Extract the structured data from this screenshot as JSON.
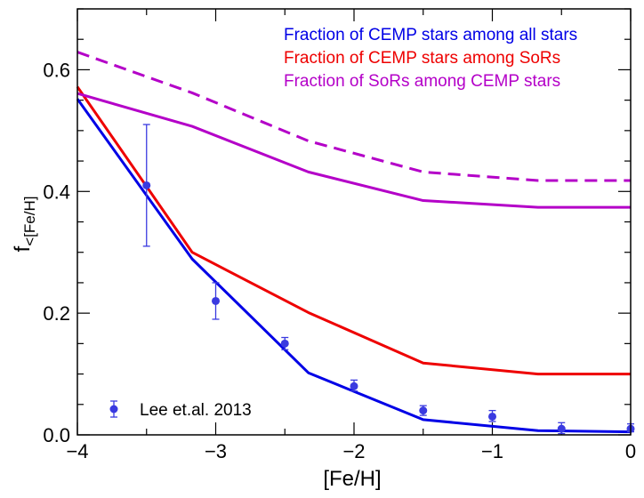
{
  "chart_data": {
    "type": "line",
    "title": "",
    "xlabel": "[Fe/H]",
    "ylabel_main": "f",
    "ylabel_sub": "<[Fe/H]",
    "xlim": [
      -4,
      0
    ],
    "ylim": [
      0,
      0.7
    ],
    "x_major_ticks": [
      -4,
      -3,
      -2,
      -1,
      0
    ],
    "x_tick_labels": [
      "−4",
      "−3",
      "−2",
      "−1",
      "0"
    ],
    "x_minor_step": 0.5,
    "y_major_ticks": [
      0,
      0.2,
      0.4,
      0.6
    ],
    "y_tick_labels": [
      "0.0",
      "0.2",
      "0.4",
      "0.6"
    ],
    "y_minor_step": 0.05,
    "grid": false,
    "legend_position": "top-right",
    "series": [
      {
        "name": "Fraction of CEMP stars among all stars",
        "color": "#0000e6",
        "dash": "solid",
        "x": [
          -4,
          -3.17,
          -2.33,
          -1.5,
          -0.67,
          0
        ],
        "y": [
          0.552,
          0.289,
          0.102,
          0.025,
          0.007,
          0.005
        ]
      },
      {
        "name": "Fraction of CEMP stars among SoRs",
        "color": "#ee0000",
        "dash": "solid",
        "x": [
          -4,
          -3.17,
          -2.33,
          -1.5,
          -0.67,
          0
        ],
        "y": [
          0.572,
          0.3,
          0.201,
          0.118,
          0.1,
          0.1
        ]
      },
      {
        "name": "Fraction of SoRs among CEMP stars",
        "color": "#b400c8",
        "dash": "solid",
        "x": [
          -4,
          -3.17,
          -2.33,
          -1.5,
          -0.67,
          0
        ],
        "y": [
          0.561,
          0.507,
          0.432,
          0.385,
          0.374,
          0.374
        ]
      },
      {
        "name": "",
        "color": "#b400c8",
        "dash": "dashed",
        "x": [
          -4,
          -3.17,
          -2.33,
          -1.5,
          -0.67,
          0
        ],
        "y": [
          0.629,
          0.562,
          0.483,
          0.432,
          0.418,
          0.418
        ]
      }
    ],
    "legend_entries": [
      {
        "label": "Fraction of CEMP stars among all stars",
        "color": "#0000e6"
      },
      {
        "label": "Fraction of CEMP stars among SoRs",
        "color": "#ee0000"
      },
      {
        "label": "Fraction of SoRs among CEMP stars",
        "color": "#b400c8"
      }
    ],
    "observations": {
      "name": "Lee et.al. 2013",
      "color": "#3a3ae0",
      "points": [
        {
          "x": -3.5,
          "y": 0.41,
          "err_low": 0.1,
          "err_high": 0.1
        },
        {
          "x": -3.0,
          "y": 0.22,
          "err_low": 0.03,
          "err_high": 0.03
        },
        {
          "x": -2.5,
          "y": 0.15,
          "err_low": 0.01,
          "err_high": 0.01
        },
        {
          "x": -2.0,
          "y": 0.08,
          "err_low": 0.008,
          "err_high": 0.01
        },
        {
          "x": -1.5,
          "y": 0.04,
          "err_low": 0.008,
          "err_high": 0.008
        },
        {
          "x": -1.0,
          "y": 0.03,
          "err_low": 0.008,
          "err_high": 0.01
        },
        {
          "x": -0.5,
          "y": 0.01,
          "err_low": 0.008,
          "err_high": 0.01
        },
        {
          "x": 0.0,
          "y": 0.01,
          "err_low": 0.005,
          "err_high": 0.008
        }
      ]
    }
  }
}
